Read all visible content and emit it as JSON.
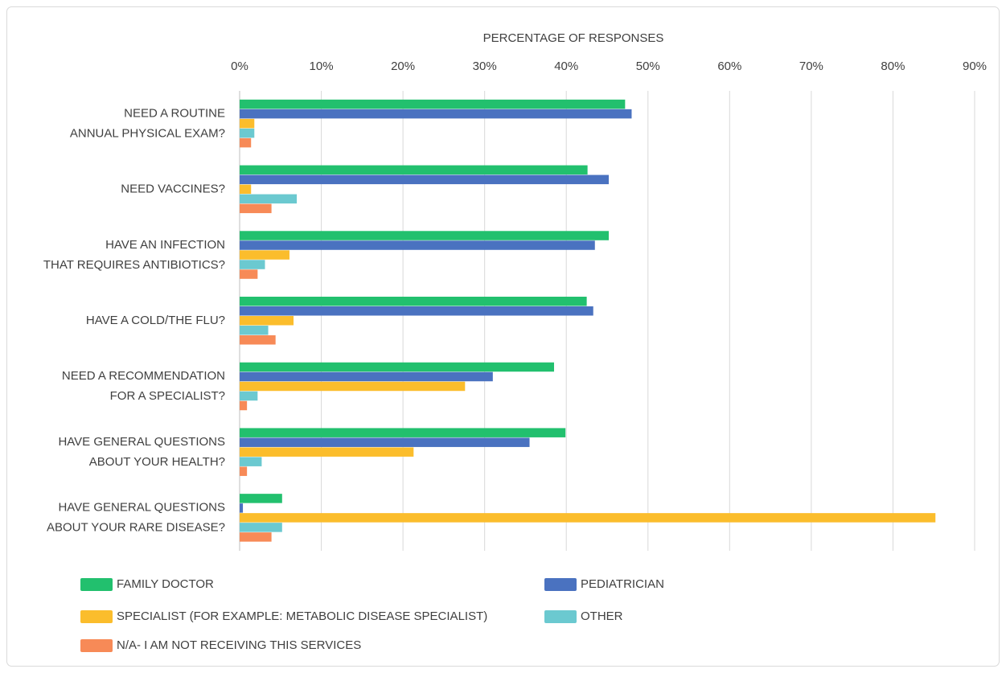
{
  "chart_data": {
    "type": "barh",
    "x_label": "PERCENTAGE OF RESPONSES",
    "categories": [
      [
        "NEED A ROUTINE",
        "ANNUAL PHYSICAL EXAM?"
      ],
      [
        "NEED VACCINES?"
      ],
      [
        "HAVE AN INFECTION",
        "THAT REQUIRES ANTIBIOTICS?"
      ],
      [
        "HAVE A COLD/THE FLU?"
      ],
      [
        "NEED A RECOMMENDATION",
        "FOR A SPECIALIST?"
      ],
      [
        "HAVE GENERAL QUESTIONS",
        "ABOUT YOUR HEALTH?"
      ],
      [
        "HAVE GENERAL QUESTIONS",
        "ABOUT YOUR RARE DISEASE?"
      ]
    ],
    "series": [
      {
        "name": "FAMILY DOCTOR",
        "color": "#22c06e",
        "values": [
          47.2,
          42.6,
          45.2,
          42.5,
          38.5,
          39.9,
          5.2
        ]
      },
      {
        "name": "PEDIATRICIAN",
        "color": "#4a72c0",
        "values": [
          48.0,
          45.2,
          43.5,
          43.3,
          31.0,
          35.5,
          0.4
        ]
      },
      {
        "name": "SPECIALIST (FOR EXAMPLE: METABOLIC DISEASE SPECIALIST)",
        "color": "#fbbd2c",
        "values": [
          1.8,
          1.4,
          6.1,
          6.6,
          27.6,
          21.3,
          85.2
        ]
      },
      {
        "name": "OTHER",
        "color": "#6bc9d0",
        "values": [
          1.8,
          7.0,
          3.1,
          3.5,
          2.2,
          2.7,
          5.2
        ]
      },
      {
        "name": "N/A- I AM NOT RECEIVING THIS SERVICES",
        "color": "#f78a57",
        "values": [
          1.4,
          3.9,
          2.2,
          4.4,
          0.9,
          0.9,
          3.9
        ]
      }
    ],
    "xlim": [
      0,
      90
    ],
    "xticks": [
      {
        "value": 0,
        "label": "0%"
      },
      {
        "value": 10,
        "label": "10%"
      },
      {
        "value": 20,
        "label": "20%"
      },
      {
        "value": 30,
        "label": "30%"
      },
      {
        "value": 40,
        "label": "40%"
      },
      {
        "value": 50,
        "label": "50%"
      },
      {
        "value": 60,
        "label": "60%"
      },
      {
        "value": 70,
        "label": "70%"
      },
      {
        "value": 80,
        "label": "80%"
      },
      {
        "value": 90,
        "label": "90%"
      }
    ],
    "grid": true,
    "legend": "bottom"
  }
}
